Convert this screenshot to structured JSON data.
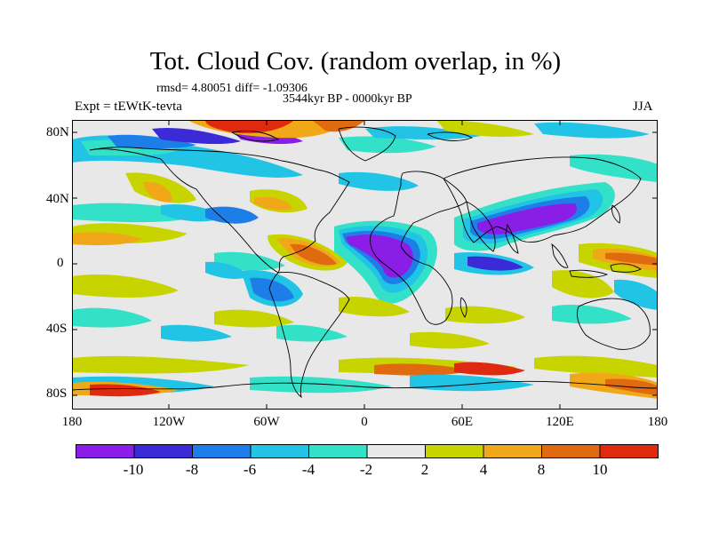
{
  "title": "Tot. Cloud Cov. (random overlap, in %)",
  "stats": "rmsd= 4.80051 diff= -1.09306",
  "period": "3544kyr BP - 0000kyr BP",
  "experiment": "Expt = tEWtK-tevta",
  "season": "JJA",
  "lat_ticks": [
    {
      "label": "80N",
      "value": 80
    },
    {
      "label": "40N",
      "value": 40
    },
    {
      "label": "0",
      "value": 0
    },
    {
      "label": "40S",
      "value": -40
    },
    {
      "label": "80S",
      "value": -80
    }
  ],
  "lon_ticks": [
    {
      "label": "180",
      "value": -180
    },
    {
      "label": "120W",
      "value": -120
    },
    {
      "label": "60W",
      "value": -60
    },
    {
      "label": "0",
      "value": 0
    },
    {
      "label": "60E",
      "value": 60
    },
    {
      "label": "120E",
      "value": 120
    },
    {
      "label": "180",
      "value": 180
    }
  ],
  "colorbar": {
    "labels": [
      "-10",
      "-8",
      "-6",
      "-4",
      "-2",
      "2",
      "4",
      "8",
      "10"
    ],
    "colors": [
      "#8a1ee6",
      "#3a2ad8",
      "#1e7ee8",
      "#22c4e6",
      "#33e0c8",
      "#e8e8e8",
      "#c8d400",
      "#f0a818",
      "#e06a10",
      "#e02a10"
    ]
  },
  "map_colors": {
    "background": "#e8e8e8",
    "strong_negative": "#8a1ee6",
    "negative_dark": "#3a2ad8",
    "negative_mid": "#1e7ee8",
    "negative_light": "#22c4e6",
    "negative_weak": "#33e0c8",
    "positive_weak": "#c8d400",
    "positive_mid": "#f0a818",
    "positive_strong": "#e06a10",
    "positive_max": "#e02a10"
  }
}
